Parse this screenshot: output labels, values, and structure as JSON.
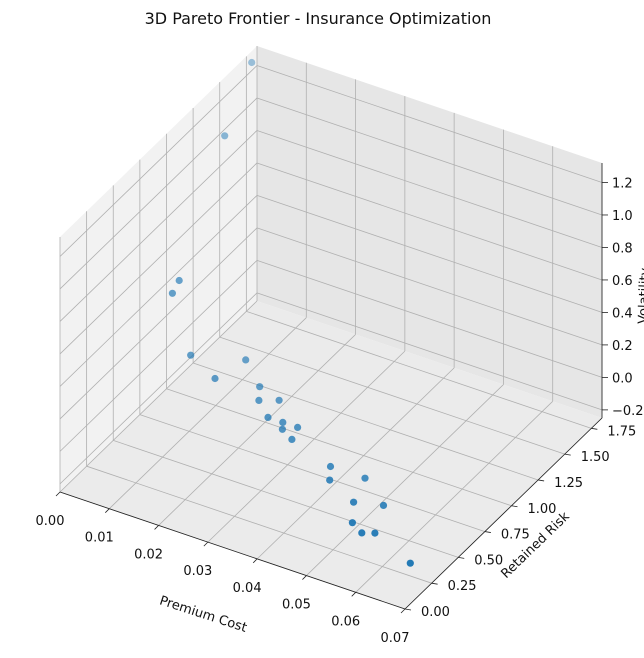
{
  "chart_data": {
    "type": "scatter",
    "projection": "3d",
    "title": "3D Pareto Frontier - Insurance Optimization",
    "xlabel": "Premium Cost",
    "ylabel": "Retained Risk",
    "zlabel": "Volatility",
    "xlim": [
      0.0,
      0.07
    ],
    "ylim": [
      0.0,
      1.85
    ],
    "zlim": [
      -0.25,
      1.32
    ],
    "xticks": [
      "0.00",
      "0.01",
      "0.02",
      "0.03",
      "0.04",
      "0.05",
      "0.06",
      "0.07"
    ],
    "yticks": [
      "0.00",
      "0.25",
      "0.50",
      "0.75",
      "1.00",
      "1.25",
      "1.50",
      "1.75"
    ],
    "zticks": [
      "−0.2",
      "0.0",
      "0.2",
      "0.4",
      "0.6",
      "0.8",
      "1.0",
      "1.2"
    ],
    "grid": true,
    "marker_color": "#1f77b4",
    "points": [
      {
        "x": 0.0,
        "y": 1.8,
        "z": 1.25
      },
      {
        "x": 0.001,
        "y": 1.5,
        "z": 1.0
      },
      {
        "x": 0.0015,
        "y": 1.05,
        "z": 0.4
      },
      {
        "x": 0.0012,
        "y": 1.0,
        "z": 0.35
      },
      {
        "x": 0.006,
        "y": 0.95,
        "z": 0.05
      },
      {
        "x": 0.012,
        "y": 0.9,
        "z": 0.0
      },
      {
        "x": 0.015,
        "y": 1.05,
        "z": 0.05
      },
      {
        "x": 0.02,
        "y": 0.95,
        "z": 0.0
      },
      {
        "x": 0.022,
        "y": 0.85,
        "z": 0.0
      },
      {
        "x": 0.025,
        "y": 0.9,
        "z": 0.0
      },
      {
        "x": 0.026,
        "y": 0.75,
        "z": 0.0
      },
      {
        "x": 0.029,
        "y": 0.75,
        "z": 0.0
      },
      {
        "x": 0.03,
        "y": 0.7,
        "z": 0.0
      },
      {
        "x": 0.032,
        "y": 0.75,
        "z": 0.0
      },
      {
        "x": 0.033,
        "y": 0.65,
        "z": 0.0
      },
      {
        "x": 0.043,
        "y": 0.55,
        "z": 0.0
      },
      {
        "x": 0.045,
        "y": 0.45,
        "z": 0.0
      },
      {
        "x": 0.05,
        "y": 0.55,
        "z": 0.0
      },
      {
        "x": 0.052,
        "y": 0.35,
        "z": 0.0
      },
      {
        "x": 0.055,
        "y": 0.2,
        "z": 0.0
      },
      {
        "x": 0.057,
        "y": 0.4,
        "z": 0.0
      },
      {
        "x": 0.058,
        "y": 0.15,
        "z": 0.0
      },
      {
        "x": 0.06,
        "y": 0.18,
        "z": 0.0
      },
      {
        "x": 0.07,
        "y": 0.05,
        "z": 0.0
      }
    ]
  }
}
